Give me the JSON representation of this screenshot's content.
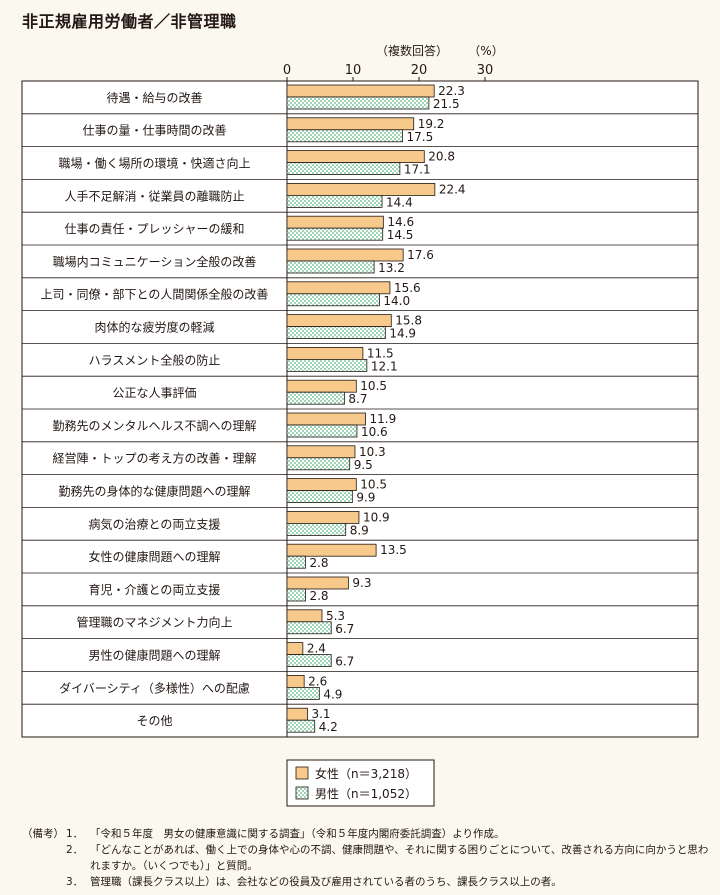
{
  "title": "非正規雇用労働者／非管理職",
  "chart_data": {
    "type": "bar",
    "orientation": "horizontal",
    "unit_note": "（複数回答）",
    "unit": "（%）",
    "xlim": [
      0,
      30
    ],
    "xticks": [
      "0",
      "10",
      "20",
      "30"
    ],
    "categories": [
      "待遇・給与の改善",
      "仕事の量・仕事時間の改善",
      "職場・働く場所の環境・快適さ向上",
      "人手不足解消・従業員の離職防止",
      "仕事の責任・プレッシャーの緩和",
      "職場内コミュニケーション全般の改善",
      "上司・同僚・部下との人間関係全般の改善",
      "肉体的な疲労度の軽減",
      "ハラスメント全般の防止",
      "公正な人事評価",
      "勤務先のメンタルヘルス不調への理解",
      "経営陣・トップの考え方の改善・理解",
      "勤務先の身体的な健康問題への理解",
      "病気の治療との両立支援",
      "女性の健康問題への理解",
      "育児・介護との両立支援",
      "管理職のマネジメント力向上",
      "男性の健康問題への理解",
      "ダイバーシティ（多様性）への配慮",
      "その他"
    ],
    "series": [
      {
        "name": "女性（n＝3,218）",
        "color": "#f7c98a",
        "values": [
          22.3,
          19.2,
          20.8,
          22.4,
          14.6,
          17.6,
          15.6,
          15.8,
          11.5,
          10.5,
          11.9,
          10.3,
          10.5,
          10.9,
          13.5,
          9.3,
          5.3,
          2.4,
          2.6,
          3.1
        ]
      },
      {
        "name": "男性（n＝1,052）",
        "color": "#c9e8d6",
        "values": [
          21.5,
          17.5,
          17.1,
          14.4,
          14.5,
          13.2,
          14.0,
          14.9,
          12.1,
          8.7,
          10.6,
          9.5,
          9.9,
          8.9,
          2.8,
          2.8,
          6.7,
          6.7,
          4.9,
          4.2
        ]
      }
    ]
  },
  "notes": {
    "head": "（備考）",
    "items": [
      {
        "num": "1．",
        "text": "「令和５年度　男女の健康意識に関する調査」（令和５年度内閣府委託調査）より作成。"
      },
      {
        "num": "2．",
        "text": "「どんなことがあれば、働く上での身体や心の不調、健康問題や、それに関する困りごとについて、改善される方向に向かうと思われますか。（いくつでも）」と質問。"
      },
      {
        "num": "3．",
        "text": "管理職（課長クラス以上）は、会社などの役員及び雇用されている者のうち、課長クラス以上の者。"
      }
    ]
  }
}
